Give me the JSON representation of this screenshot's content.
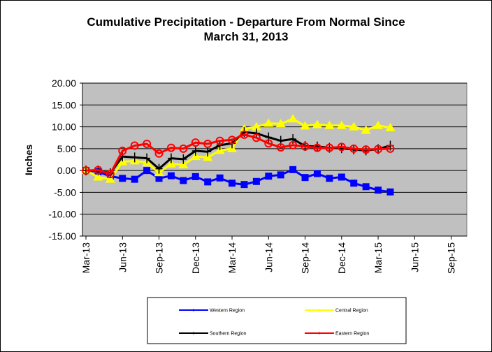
{
  "chart_data": {
    "type": "line",
    "title_line1": "Cumulative Precipitation - Departure From Normal Since",
    "title_line2": "March 31, 2013",
    "ylabel": "Inches",
    "xlabel": "",
    "ylim": [
      -15,
      20
    ],
    "ytick_values": [
      20,
      15,
      10,
      5,
      0,
      -5,
      -10,
      -15
    ],
    "ytick_labels": [
      "20.00",
      "15.00",
      "10.00",
      "5.00",
      "0.00",
      "-5.00",
      "-10.00",
      "-15.00"
    ],
    "xlim_months": [
      0,
      31
    ],
    "xtick_months": [
      0,
      3,
      6,
      9,
      12,
      15,
      18,
      21,
      24,
      27,
      30
    ],
    "xtick_labels": [
      "Mar-13",
      "Jun-13",
      "Sep-13",
      "Dec-13",
      "Mar-14",
      "Jun-14",
      "Sep-14",
      "Dec-14",
      "Mar-15",
      "Jun-15",
      "Sep-15"
    ],
    "x": [
      "Mar-13",
      "Apr-13",
      "May-13",
      "Jun-13",
      "Jul-13",
      "Aug-13",
      "Sep-13",
      "Oct-13",
      "Nov-13",
      "Dec-13",
      "Jan-14",
      "Feb-14",
      "Mar-14",
      "Apr-14",
      "May-14",
      "Jun-14",
      "Jul-14",
      "Aug-14",
      "Sep-14",
      "Oct-14",
      "Nov-14",
      "Dec-14",
      "Jan-15",
      "Feb-15",
      "Mar-15",
      "Apr-15"
    ],
    "grid": "horizontal",
    "plot_background": "#c0c0c0",
    "legend_position": "bottom",
    "series": [
      {
        "name": "Western Region",
        "color": "#0000ff",
        "marker": "square",
        "values": [
          0.0,
          -0.3,
          -1.3,
          -1.8,
          -2.0,
          0.0,
          -1.8,
          -1.2,
          -2.3,
          -1.4,
          -2.6,
          -1.7,
          -2.9,
          -3.2,
          -2.5,
          -1.3,
          -1.0,
          0.2,
          -1.6,
          -0.7,
          -1.8,
          -1.5,
          -2.9,
          -3.7,
          -4.5,
          -4.9
        ]
      },
      {
        "name": "Central Region",
        "color": "#ffff00",
        "marker": "triangle",
        "values": [
          0.0,
          -1.5,
          -2.0,
          2.0,
          2.2,
          1.8,
          -0.5,
          1.5,
          1.3,
          3.2,
          3.0,
          4.6,
          5.0,
          9.5,
          10.0,
          10.8,
          10.7,
          11.8,
          10.2,
          10.5,
          10.3,
          10.3,
          10.0,
          9.2,
          10.3,
          9.8
        ]
      },
      {
        "name": "Southern Region",
        "color": "#000000",
        "marker": "plus",
        "values": [
          0.0,
          0.0,
          -0.6,
          3.2,
          3.0,
          2.8,
          0.4,
          2.8,
          2.6,
          4.5,
          4.3,
          5.8,
          6.2,
          8.8,
          8.5,
          7.6,
          6.8,
          7.2,
          5.6,
          5.5,
          5.2,
          5.1,
          4.8,
          4.6,
          4.9,
          5.7
        ]
      },
      {
        "name": "Eastern Region",
        "color": "#ff0000",
        "marker": "circle",
        "values": [
          0.0,
          0.1,
          -0.8,
          4.5,
          5.7,
          6.1,
          3.9,
          5.2,
          5.0,
          6.4,
          6.1,
          6.8,
          7.0,
          8.2,
          7.5,
          6.2,
          5.3,
          5.8,
          5.5,
          5.2,
          5.2,
          5.4,
          5.0,
          4.8,
          4.9,
          5.0
        ]
      }
    ]
  }
}
